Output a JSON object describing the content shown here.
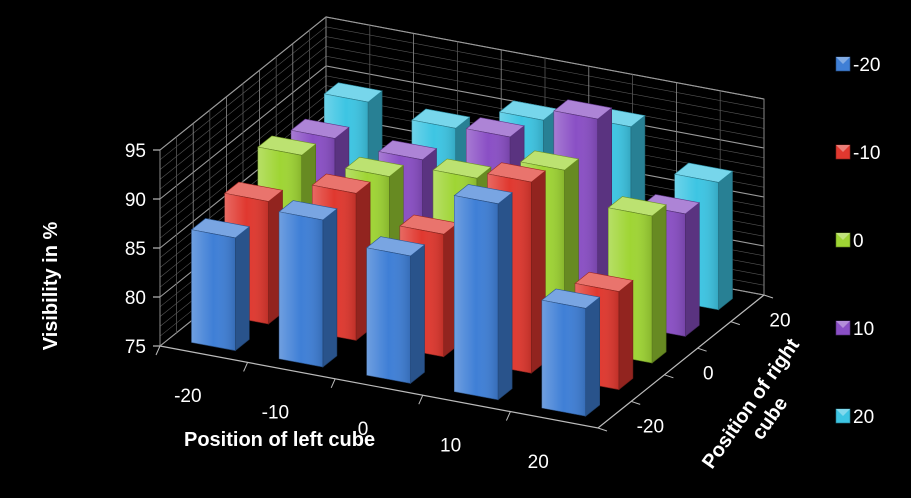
{
  "chart_data": {
    "type": "bar",
    "subtype": "3d-column",
    "xlabel": "Position of left cube",
    "zlabel": "Position of right cube",
    "ylabel": "Visibility in %",
    "x_categories": [
      "-20",
      "-10",
      "0",
      "10",
      "20"
    ],
    "z_categories": [
      "-20",
      "-10",
      "0",
      "10",
      "20"
    ],
    "z_tick_labels": [
      "-20",
      "0",
      "20"
    ],
    "y_ticks": [
      "75",
      "80",
      "85",
      "90",
      "95"
    ],
    "ylim": [
      75,
      95
    ],
    "grid": true,
    "legend_position": "right",
    "series": [
      {
        "name": "-20",
        "color": "#3f7fd6",
        "values": [
          86.5,
          90,
          88,
          95,
          86
        ]
      },
      {
        "name": "-10",
        "color": "#e0382f",
        "values": [
          87.5,
          90,
          87.5,
          94.5,
          85
        ]
      },
      {
        "name": "0",
        "color": "#9fd534",
        "values": [
          89.5,
          89,
          90.5,
          93,
          90
        ]
      },
      {
        "name": "10",
        "color": "#8a4fc5",
        "values": [
          88.5,
          88,
          92,
          95.5,
          87.5
        ]
      },
      {
        "name": "20",
        "color": "#3dc5e3",
        "values": [
          89.5,
          88.5,
          91,
          92,
          88
        ]
      }
    ]
  }
}
